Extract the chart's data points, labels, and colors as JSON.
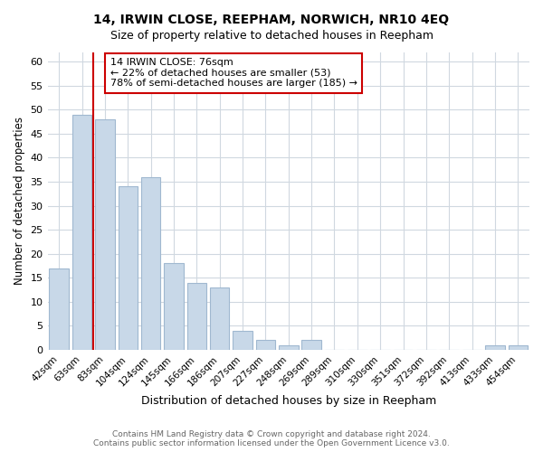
{
  "title": "14, IRWIN CLOSE, REEPHAM, NORWICH, NR10 4EQ",
  "subtitle": "Size of property relative to detached houses in Reepham",
  "xlabel": "Distribution of detached houses by size in Reepham",
  "ylabel": "Number of detached properties",
  "bar_labels": [
    "42sqm",
    "63sqm",
    "83sqm",
    "104sqm",
    "124sqm",
    "145sqm",
    "166sqm",
    "186sqm",
    "207sqm",
    "227sqm",
    "248sqm",
    "269sqm",
    "289sqm",
    "310sqm",
    "330sqm",
    "351sqm",
    "372sqm",
    "392sqm",
    "413sqm",
    "433sqm",
    "454sqm"
  ],
  "bar_values": [
    17,
    49,
    48,
    34,
    36,
    18,
    14,
    13,
    4,
    2,
    1,
    2,
    0,
    0,
    0,
    0,
    0,
    0,
    0,
    1,
    1
  ],
  "bar_color": "#c8d8e8",
  "bar_edge_color": "#a0b8d0",
  "vline_color": "#cc0000",
  "vline_x": 1.5,
  "ylim": [
    0,
    62
  ],
  "yticks": [
    0,
    5,
    10,
    15,
    20,
    25,
    30,
    35,
    40,
    45,
    50,
    55,
    60
  ],
  "annotation_title": "14 IRWIN CLOSE: 76sqm",
  "annotation_line1": "← 22% of detached houses are smaller (53)",
  "annotation_line2": "78% of semi-detached houses are larger (185) →",
  "footer_line1": "Contains HM Land Registry data © Crown copyright and database right 2024.",
  "footer_line2": "Contains public sector information licensed under the Open Government Licence v3.0.",
  "background_color": "#ffffff",
  "grid_color": "#d0d8e0"
}
